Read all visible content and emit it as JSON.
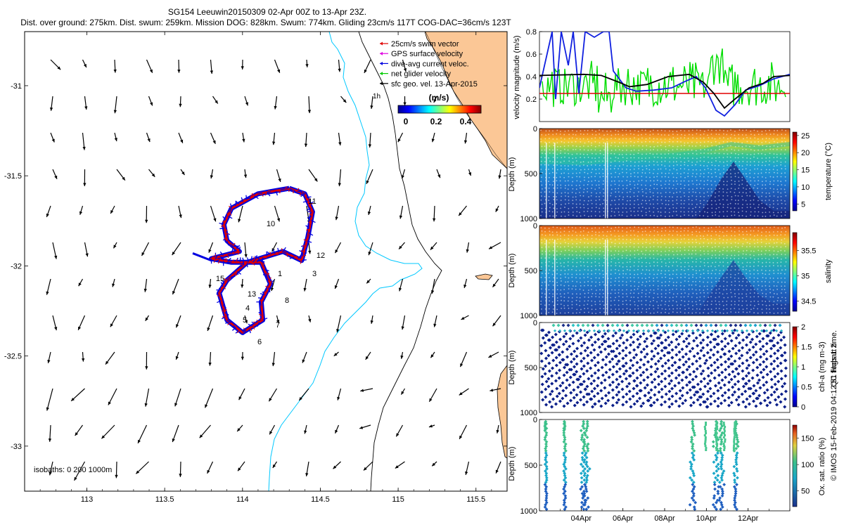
{
  "header": {
    "line1": "SG154 Leeuwin20150309 02-Apr 00Z to 13-Apr 23Z.",
    "line2": "Dist. over ground: 275km. Dist. swum: 259km. Mission DOG: 828km. Swum: 774km. Gliding 23cm/s 117T COG-DAC=36cm/s 123T"
  },
  "map": {
    "legend": [
      {
        "label": "25cm/s swim vector",
        "color": "#e00000"
      },
      {
        "label": "GPS surface velocity",
        "color": "#e000e0"
      },
      {
        "label": "dive-avg current veloc.",
        "color": "#0000e0"
      },
      {
        "label": "net glider velocity",
        "color": "#00cc00"
      },
      {
        "label": "sfc geo. vel. 13-Apr-2015",
        "color": "#000000"
      }
    ],
    "speed_colorbar": {
      "label": "(m/s)",
      "ticks": [
        "0",
        "0.2",
        "0.4"
      ],
      "range": [
        0,
        0.5
      ]
    },
    "isobaths_label": "isobaths: 0   200   1000m",
    "isobath_small_label": "1h",
    "x_ticks": [
      "113",
      "113.5",
      "114",
      "114.5",
      "115",
      "115.5"
    ],
    "y_ticks": [
      "-31",
      "-31.5",
      "-32",
      "-32.5",
      "-33"
    ],
    "waypoints": [
      "1",
      "3",
      "4",
      "5",
      "6",
      "7",
      "8",
      "10",
      "11",
      "12",
      "13",
      "15"
    ]
  },
  "right_panels": {
    "velocity": {
      "ylabel": "velocity magnitude (m/s)",
      "yticks": [
        "0.2",
        "0.4",
        "0.6",
        "0.8"
      ]
    },
    "temperature": {
      "ylabel": "Depth (m)",
      "cblabel": "temperature (°C)",
      "yticks": [
        "0",
        "500",
        "1000"
      ],
      "cbticks": [
        "5",
        "10",
        "15",
        "20",
        "25"
      ]
    },
    "salinity": {
      "ylabel": "Depth (m)",
      "cblabel": "salinity",
      "yticks": [
        "0",
        "500",
        "1000"
      ],
      "cbticks": [
        "34.5",
        "35",
        "35.5"
      ]
    },
    "chla": {
      "ylabel": "Depth (m)",
      "cblabel": "chl-a (mg m-3)",
      "yticks": [
        "0",
        "500",
        "1000"
      ],
      "cbticks": [
        "0",
        "0.5",
        "1",
        "1.5",
        "2"
      ]
    },
    "oxygen": {
      "ylabel": "Depth (m)",
      "cblabel": "Ox. sat. ratio (%)",
      "yticks": [
        "0",
        "500",
        "1000"
      ],
      "cbticks": [
        "50",
        "100",
        "150"
      ]
    },
    "date_ticks": [
      "04Apr",
      "06Apr",
      "08Apr",
      "10Apr",
      "12Apr"
    ]
  },
  "footer": {
    "qc_label": "QC flags 1  2",
    "copyright": "© IMOS 15-Feb-2019 04:12:51 Hobart time."
  },
  "chart_data": [
    {
      "type": "scatter",
      "title": "SG154 Leeuwin20150309 02-Apr 00Z to 13-Apr 23Z.",
      "xlim": [
        112.6,
        115.7
      ],
      "ylim": [
        -33.25,
        -30.7
      ],
      "description_series": [
        {
          "name": "sfc geo. vel. 13-Apr-2015",
          "kind": "vector field"
        },
        {
          "name": "25cm/s swim vector",
          "kind": "track vectors"
        },
        {
          "name": "dive-avg current veloc.",
          "kind": "track vectors"
        }
      ],
      "track": [
        [
          114.3,
          -31.57
        ],
        [
          114.1,
          -31.6
        ],
        [
          113.93,
          -31.68
        ],
        [
          113.88,
          -31.77
        ],
        [
          113.9,
          -31.86
        ],
        [
          113.98,
          -31.92
        ],
        [
          113.8,
          -31.96
        ],
        [
          113.93,
          -31.98
        ],
        [
          114.12,
          -31.98
        ],
        [
          114.18,
          -32.1
        ],
        [
          114.12,
          -32.2
        ],
        [
          114.13,
          -32.3
        ],
        [
          114.0,
          -32.37
        ],
        [
          113.9,
          -32.3
        ],
        [
          113.85,
          -32.15
        ],
        [
          113.9,
          -32.08
        ],
        [
          114.03,
          -31.98
        ],
        [
          114.26,
          -31.92
        ],
        [
          114.38,
          -31.97
        ],
        [
          114.42,
          -31.84
        ],
        [
          114.45,
          -31.7
        ],
        [
          114.4,
          -31.6
        ],
        [
          114.3,
          -31.57
        ]
      ]
    },
    {
      "type": "line",
      "ylabel": "velocity magnitude (m/s)",
      "ylim": [
        0,
        0.8
      ],
      "x": [
        "02-Apr",
        "03-Apr",
        "04-Apr",
        "05-Apr",
        "06-Apr",
        "07-Apr",
        "08-Apr",
        "09-Apr",
        "10-Apr",
        "11-Apr",
        "12-Apr",
        "13-Apr",
        "14-Apr"
      ],
      "series": [
        {
          "values": [
            0.42,
            0.42,
            0.43,
            0.41,
            0.37,
            0.32,
            0.36,
            0.41,
            0.42,
            0.16,
            0.34,
            0.35,
            0.42
          ]
        },
        {
          "values": [
            0.35,
            0.8,
            0.8,
            0.8,
            0.42,
            0.3,
            0.26,
            0.27,
            0.38,
            0.1,
            0.05,
            0.28,
            0.4
          ]
        },
        {
          "values": [
            0.25,
            0.25,
            0.25,
            0.25,
            0.25,
            0.25,
            0.25,
            0.25,
            0.25,
            0.25,
            0.25,
            0.25,
            0.25
          ]
        },
        {
          "values": [
            0.3,
            0.35,
            0.3,
            0.2,
            0.3,
            0.25,
            0.15,
            0.35,
            0.4,
            0.3,
            0.45,
            0.35,
            0.5
          ]
        }
      ]
    },
    {
      "type": "heatmap",
      "ylabel": "Depth (m)",
      "colorbar": "temperature (°C)",
      "ylim": [
        1000,
        0
      ],
      "clim": [
        4,
        26
      ]
    },
    {
      "type": "heatmap",
      "ylabel": "Depth (m)",
      "colorbar": "salinity",
      "ylim": [
        1000,
        0
      ],
      "clim": [
        34.3,
        35.8
      ]
    },
    {
      "type": "scatter",
      "ylabel": "Depth (m)",
      "colorbar": "chl-a (mg m-3)",
      "ylim": [
        1000,
        0
      ],
      "clim": [
        0,
        2
      ]
    },
    {
      "type": "scatter",
      "ylabel": "Depth (m)",
      "colorbar": "Ox. sat. ratio (%)",
      "ylim": [
        1000,
        0
      ],
      "clim": [
        20,
        170
      ]
    }
  ]
}
